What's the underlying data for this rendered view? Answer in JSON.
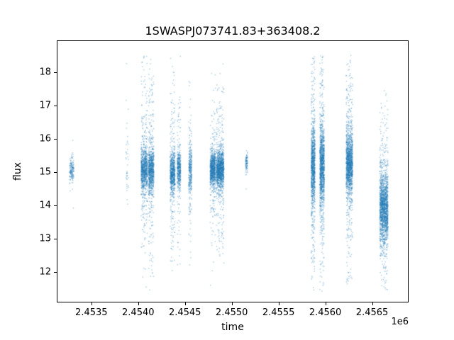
{
  "chart_data": {
    "type": "scatter",
    "title": "1SWASPJ073741.83+363408.2",
    "xlabel": "time",
    "ylabel": "flux",
    "x_offset_label": "1e6",
    "marker_color": "#1f77b4",
    "marker_alpha": 0.35,
    "grid": false,
    "legend": null,
    "xlim": [
      2453130,
      2456890
    ],
    "ylim": [
      11.09,
      18.96
    ],
    "xticks": {
      "values": [
        2453500,
        2454000,
        2454500,
        2455000,
        2455500,
        2456000,
        2456500
      ],
      "labels": [
        "2.4535",
        "2.4540",
        "2.4545",
        "2.4550",
        "2.4555",
        "2.4560",
        "2.4565"
      ]
    },
    "yticks": {
      "values": [
        12,
        13,
        14,
        15,
        16,
        17,
        18
      ],
      "labels": [
        "12",
        "13",
        "14",
        "15",
        "16",
        "17",
        "18"
      ]
    },
    "flux_clip": [
      11.45,
      18.55
    ],
    "clusters": [
      {
        "x": 2453282,
        "xw": 22,
        "n": 160,
        "fm": 15.1,
        "fs": 0.18,
        "tf": 0.1,
        "ts": 0.45
      },
      {
        "x": 2453876,
        "xw": 14,
        "n": 40,
        "fm": 15.4,
        "fs": 0.55,
        "tf": 0.25,
        "ts": 1.0
      },
      {
        "x": 2454058,
        "xw": 34,
        "n": 950,
        "fm": 15.1,
        "fs": 0.3,
        "tf": 0.25,
        "ts": 1.6
      },
      {
        "x": 2454132,
        "xw": 28,
        "n": 900,
        "fm": 15.1,
        "fs": 0.32,
        "tf": 0.25,
        "ts": 1.6
      },
      {
        "x": 2454360,
        "xw": 26,
        "n": 750,
        "fm": 15.0,
        "fs": 0.3,
        "tf": 0.22,
        "ts": 1.5
      },
      {
        "x": 2454428,
        "xw": 18,
        "n": 450,
        "fm": 15.1,
        "fs": 0.3,
        "tf": 0.2,
        "ts": 1.4
      },
      {
        "x": 2454549,
        "xw": 16,
        "n": 350,
        "fm": 15.1,
        "fs": 0.38,
        "tf": 0.25,
        "ts": 1.1
      },
      {
        "x": 2454790,
        "xw": 28,
        "n": 850,
        "fm": 15.1,
        "fs": 0.26,
        "tf": 0.18,
        "ts": 1.2
      },
      {
        "x": 2454868,
        "xw": 40,
        "n": 1300,
        "fm": 15.1,
        "fs": 0.3,
        "tf": 0.2,
        "ts": 1.3
      },
      {
        "x": 2455152,
        "xw": 10,
        "n": 90,
        "fm": 15.3,
        "fs": 0.16,
        "tf": 0.05,
        "ts": 0.4
      },
      {
        "x": 2455862,
        "xw": 20,
        "n": 1100,
        "fm": 15.2,
        "fs": 0.55,
        "tf": 0.3,
        "ts": 1.9
      },
      {
        "x": 2455958,
        "xw": 24,
        "n": 1300,
        "fm": 15.2,
        "fs": 0.55,
        "tf": 0.3,
        "ts": 1.9
      },
      {
        "x": 2456250,
        "xw": 34,
        "n": 1500,
        "fm": 15.3,
        "fs": 0.45,
        "tf": 0.28,
        "ts": 1.7
      },
      {
        "x": 2456618,
        "xw": 44,
        "n": 1700,
        "fm": 13.95,
        "fs": 0.5,
        "tf": 0.25,
        "ts": 1.6
      }
    ]
  }
}
